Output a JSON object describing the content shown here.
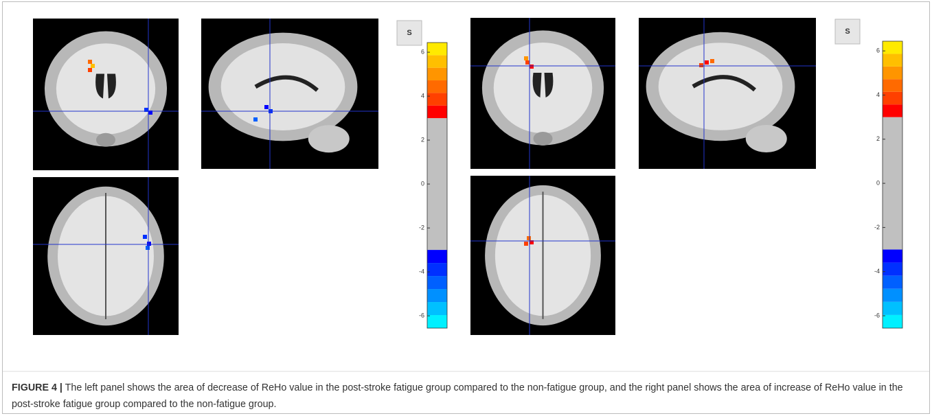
{
  "figure": {
    "label": "FIGURE 4 |",
    "caption": "The left panel shows the area of decrease of ReHo value in the post-stroke fatigue group compared to the non-fatigue group, and the right panel shows the area of increase of ReHo value in the post-stroke fatigue group compared to the non-fatigue group."
  },
  "panels": [
    {
      "button": "S",
      "colorbar": {
        "range": [
          -6.56,
          6.44
        ],
        "ticks": [
          6,
          4,
          2,
          0,
          -2,
          -4,
          -6
        ],
        "threshold": 3,
        "positive_colors": [
          "#ff0000",
          "#ff4000",
          "#ff6a00",
          "#ff9500",
          "#ffbf00",
          "#ffea00"
        ],
        "negative_colors": [
          "#0000ff",
          "#0030ff",
          "#0060ff",
          "#0090ff",
          "#00c0ff",
          "#00f0ff"
        ],
        "neutral_color": "#c0c0c0"
      }
    },
    {
      "button": "S",
      "colorbar": {
        "range": [
          -6.56,
          6.44
        ],
        "ticks": [
          6,
          4,
          2,
          0,
          -2,
          -4,
          -6
        ],
        "threshold": 3,
        "positive_colors": [
          "#ff0000",
          "#ff4000",
          "#ff6a00",
          "#ff9500",
          "#ffbf00",
          "#ffea00"
        ],
        "negative_colors": [
          "#0000ff",
          "#0030ff",
          "#0060ff",
          "#0090ff",
          "#00c0ff",
          "#00f0ff"
        ],
        "neutral_color": "#c0c0c0"
      }
    }
  ]
}
